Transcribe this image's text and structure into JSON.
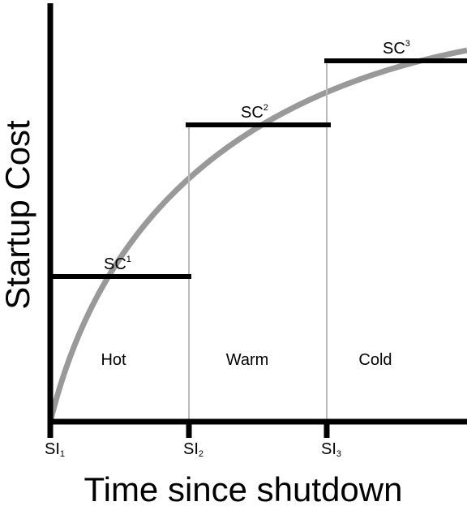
{
  "axes": {
    "y_label": "Startup Cost",
    "x_label": "Time since shutdown"
  },
  "steps": [
    {
      "label": "SC",
      "index": "1"
    },
    {
      "label": "SC",
      "index": "2"
    },
    {
      "label": "SC",
      "index": "3"
    }
  ],
  "intervals": [
    {
      "label": "SI",
      "index": "1"
    },
    {
      "label": "SI",
      "index": "2"
    },
    {
      "label": "SI",
      "index": "3"
    }
  ],
  "regions": [
    "Hot",
    "Warm",
    "Cold"
  ]
}
